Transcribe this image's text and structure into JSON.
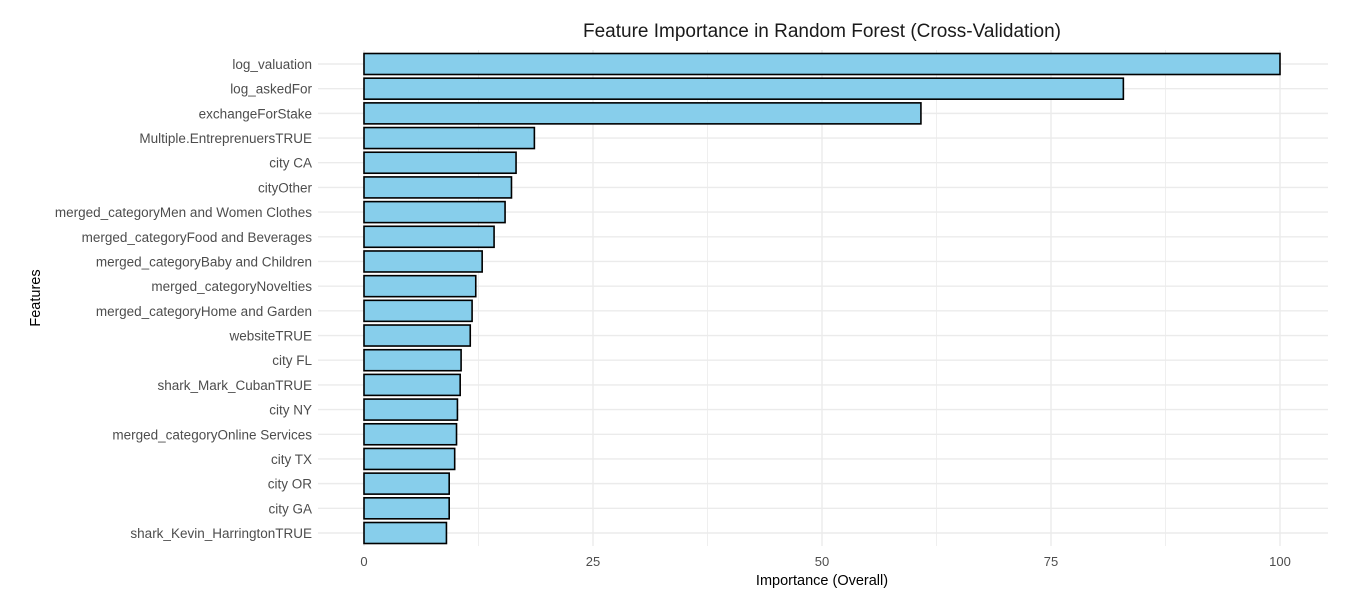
{
  "chart_data": {
    "type": "bar",
    "orientation": "horizontal",
    "title": "Feature Importance in Random Forest (Cross-Validation)",
    "xlabel": "Importance (Overall)",
    "ylabel": "Features",
    "xlim": [
      0,
      103
    ],
    "xticks": [
      0,
      25,
      50,
      75,
      100
    ],
    "xtick_labels": [
      "0",
      "25",
      "50",
      "75",
      "100"
    ],
    "grid": true,
    "bar_fill": "#87CEEB",
    "bar_stroke": "#000000",
    "grid_color": "#ebebeb",
    "categories": [
      "log_valuation",
      "log_askedFor",
      "exchangeForStake",
      "Multiple.EntreprenuersTRUE",
      "city CA",
      "cityOther",
      "merged_categoryMen and Women Clothes",
      "merged_categoryFood and Beverages",
      "merged_categoryBaby and Children",
      "merged_categoryNovelties",
      "merged_categoryHome and Garden",
      "websiteTRUE",
      "city FL",
      "shark_Mark_CubanTRUE",
      "city NY",
      "merged_categoryOnline Services",
      "city TX",
      "city OR",
      "city GA",
      "shark_Kevin_HarringtonTRUE"
    ],
    "values": [
      100,
      82.9,
      60.8,
      18.6,
      16.6,
      16.1,
      15.4,
      14.2,
      12.9,
      12.2,
      11.8,
      11.6,
      10.6,
      10.5,
      10.2,
      10.1,
      9.9,
      9.3,
      9.3,
      9.0
    ]
  }
}
